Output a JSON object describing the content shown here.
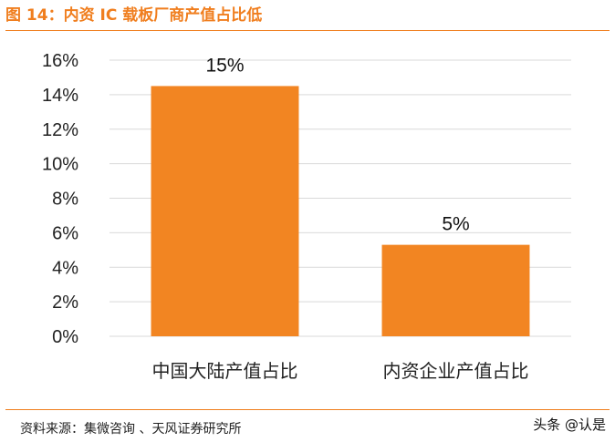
{
  "figure": {
    "title": "图 14：内资 IC 载板厂商产值占比低",
    "source": "资料来源：集微咨询 、天风证券研究所",
    "watermark": "头条 @认是"
  },
  "colors": {
    "accent": "#f07e1e",
    "bar": "#f28522",
    "grid": "#d9d9d9"
  },
  "chart_data": {
    "type": "bar",
    "title": "",
    "xlabel": "",
    "ylabel": "",
    "categories": [
      "中国大陆产值占比",
      "内资企业产值占比"
    ],
    "values": [
      14.5,
      5.3
    ],
    "data_labels": [
      "15%",
      "5%"
    ],
    "ylim": [
      0,
      16
    ],
    "y_ticks": [
      0,
      2,
      4,
      6,
      8,
      10,
      12,
      14,
      16
    ],
    "y_tick_labels": [
      "0%",
      "2%",
      "4%",
      "6%",
      "8%",
      "10%",
      "12%",
      "14%",
      "16%"
    ],
    "grid": true,
    "legend": "none"
  }
}
